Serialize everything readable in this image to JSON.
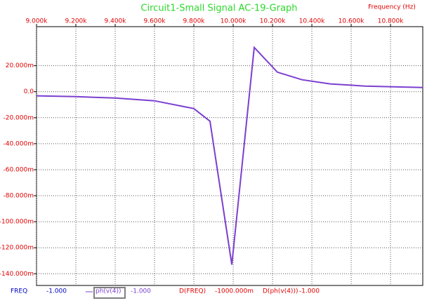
{
  "chart_data": {
    "type": "line",
    "title": "Circuit1-Small Signal AC-19-Graph",
    "x_label": "Frequency  (Hz)",
    "x": [
      9000,
      9200,
      9400,
      9600,
      9800,
      9882,
      9993,
      10107,
      10225,
      10350,
      10493,
      10671,
      10814,
      10964
    ],
    "series": [
      {
        "name": "ph(v(4))",
        "color": "#7b3fd0",
        "values": [
          -3.2,
          -3.8,
          -4.9,
          -7,
          -13,
          -22.7,
          -133,
          34,
          15,
          9.2,
          6,
          4.3,
          3.8,
          3.2
        ]
      }
    ],
    "xlim": [
      9000,
      10964
    ],
    "ylim": [
      -149,
      50
    ],
    "xticks": [
      {
        "value": 9000,
        "label": "9.000k"
      },
      {
        "value": 9200,
        "label": "9.200k"
      },
      {
        "value": 9400,
        "label": "9.400k"
      },
      {
        "value": 9600,
        "label": "9.600k"
      },
      {
        "value": 9800,
        "label": "9.800k"
      },
      {
        "value": 10000,
        "label": "10.000k"
      },
      {
        "value": 10200,
        "label": "10.200k"
      },
      {
        "value": 10400,
        "label": "10.400k"
      },
      {
        "value": 10600,
        "label": "10.600k"
      },
      {
        "value": 10800,
        "label": "10.800k"
      }
    ],
    "yticks": [
      {
        "value": 20,
        "label": "20.000m"
      },
      {
        "value": 0,
        "label": "0.0"
      },
      {
        "value": -20,
        "label": "-20.000m"
      },
      {
        "value": -40,
        "label": "-40.000m"
      },
      {
        "value": -60,
        "label": "-60.000m"
      },
      {
        "value": -80,
        "label": "-80.000m"
      },
      {
        "value": -100,
        "label": "-100.000m"
      },
      {
        "value": -120,
        "label": "-120.000m"
      },
      {
        "value": -140,
        "label": "-140.000m"
      }
    ],
    "grid": true
  },
  "cursor": {
    "x_name": "FREQ",
    "x_value": "-1.000",
    "y_value": "-1.000",
    "dx_name": "D(FREQ)",
    "dx_value": "-1000.000m",
    "dy_name": "D(ph(v(4)))",
    "dy_value": "-1.000"
  }
}
